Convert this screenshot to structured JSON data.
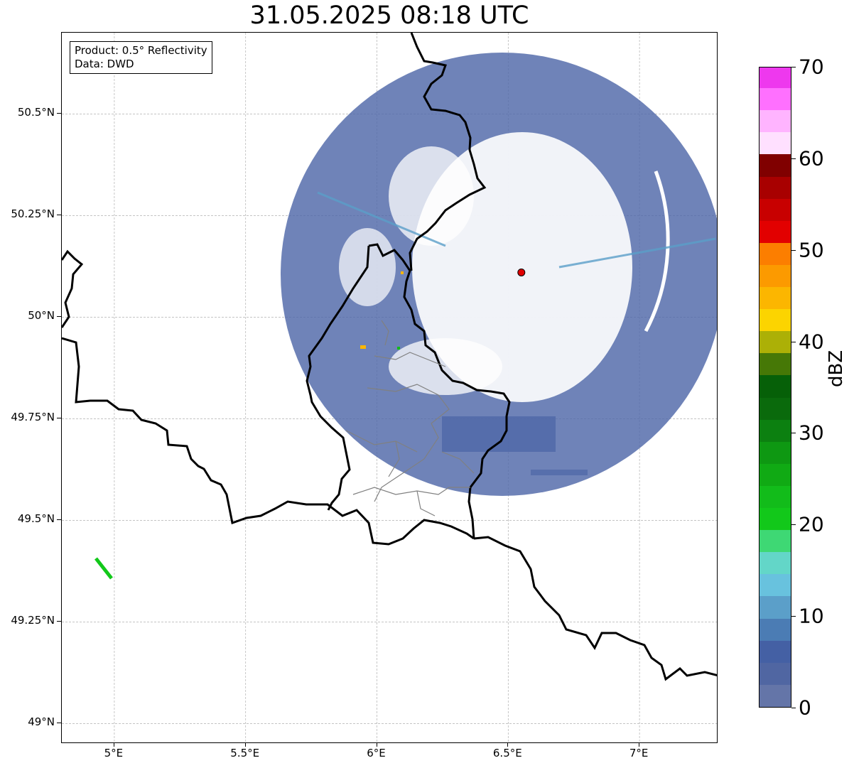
{
  "title": "31.05.2025 08:18 UTC",
  "info_box": {
    "product_line": "Product: 0.5° Reflectivity",
    "data_line": "Data: DWD"
  },
  "map": {
    "lon_range": [
      4.8,
      7.3
    ],
    "lat_range": [
      48.95,
      50.7
    ],
    "grid": true,
    "lon_ticks": [
      {
        "value": 5.0,
        "label": "5°E"
      },
      {
        "value": 5.5,
        "label": "5.5°E"
      },
      {
        "value": 6.0,
        "label": "6°E"
      },
      {
        "value": 6.5,
        "label": "6.5°E"
      },
      {
        "value": 7.0,
        "label": "7°E"
      }
    ],
    "lat_ticks": [
      {
        "value": 50.5,
        "label": "50.5°N"
      },
      {
        "value": 50.25,
        "label": "50.25°N"
      },
      {
        "value": 50.0,
        "label": "50°N"
      },
      {
        "value": 49.75,
        "label": "49.75°N"
      },
      {
        "value": 49.5,
        "label": "49.5°N"
      },
      {
        "value": 49.25,
        "label": "49.25°N"
      },
      {
        "value": 49.0,
        "label": "49°N"
      }
    ],
    "radar_site": {
      "lon": 6.55,
      "lat": 50.11,
      "color": "#e00000"
    },
    "echo_color": "#4f68a8"
  },
  "colorbar": {
    "unit": "dBZ",
    "min": 0,
    "max": 70,
    "tick_labels": [
      {
        "value": 0,
        "label": "0"
      },
      {
        "value": 10,
        "label": "10"
      },
      {
        "value": 20,
        "label": "20"
      },
      {
        "value": 30,
        "label": "30"
      },
      {
        "value": 40,
        "label": "40"
      },
      {
        "value": 50,
        "label": "50"
      },
      {
        "value": 60,
        "label": "60"
      },
      {
        "value": 70,
        "label": "70"
      }
    ],
    "colors": [
      "#6475a8",
      "#5066a2",
      "#4460a4",
      "#4b7cb4",
      "#5b9fc9",
      "#68c2de",
      "#63d6c8",
      "#3ed874",
      "#12c81a",
      "#12bc1a",
      "#10aa14",
      "#0e9812",
      "#0c8010",
      "#0a6a0c",
      "#066008",
      "#467806",
      "#acb006",
      "#fcd400",
      "#fcb600",
      "#fc9a00",
      "#fc7e00",
      "#e20000",
      "#c80000",
      "#a80000",
      "#800000",
      "#ffe0ff",
      "#ffb4ff",
      "#ff70ff",
      "#ee38ee"
    ]
  }
}
